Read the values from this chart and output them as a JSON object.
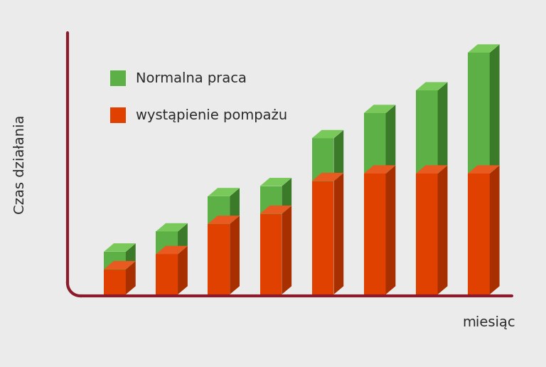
{
  "title": "",
  "ylabel": "Czas działania",
  "xlabel": "miesiąc",
  "background_color": "#ebebeb",
  "axis_color": "#8b1a2a",
  "orange_front": "#e04000",
  "orange_side": "#a83000",
  "orange_top": "#e85a20",
  "green_front": "#5cb045",
  "green_side": "#3a7a28",
  "green_top": "#78c85a",
  "legend_green": "Normalna praca",
  "legend_orange": "wystąpienie pompаżu",
  "n_bars": 8,
  "orange_heights": [
    1.0,
    1.6,
    2.8,
    3.2,
    4.5,
    4.8,
    4.8,
    4.8
  ],
  "green_heights": [
    0.7,
    0.9,
    1.1,
    1.1,
    1.7,
    2.4,
    3.3,
    4.8
  ]
}
